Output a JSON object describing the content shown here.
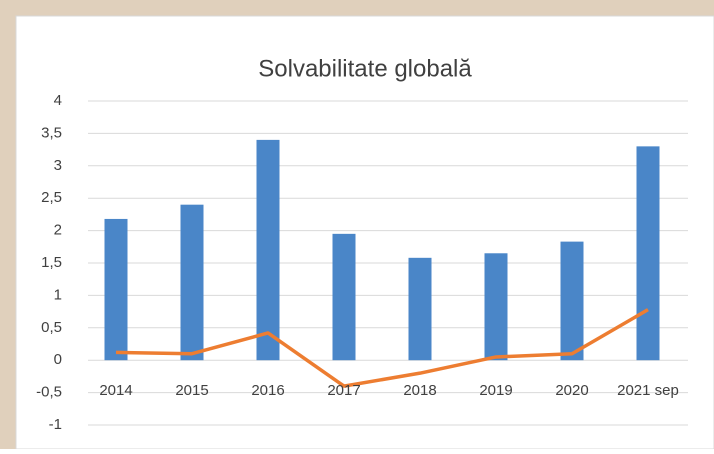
{
  "chart_data": {
    "type": "bar",
    "title": "Solvabilitate globală",
    "categories": [
      "2014",
      "2015",
      "2016",
      "2017",
      "2018",
      "2019",
      "2020",
      "2021 sep"
    ],
    "series": [
      {
        "type": "bar",
        "color": "#4a86c8",
        "values": [
          2.18,
          2.4,
          3.4,
          1.95,
          1.58,
          1.65,
          1.83,
          3.3
        ]
      },
      {
        "type": "line",
        "color": "#ed7d31",
        "values": [
          0.12,
          0.1,
          0.42,
          -0.4,
          -0.2,
          0.05,
          0.1,
          0.78
        ]
      }
    ],
    "ylim": [
      -1,
      4
    ],
    "yticks": [
      -1,
      {
        "value": -0.5,
        "label": "-0,5"
      },
      0,
      {
        "value": 0.5,
        "label": "0,5"
      },
      1,
      {
        "value": 1.5,
        "label": "1,5"
      },
      2,
      {
        "value": 2.5,
        "label": "2,5"
      },
      3,
      {
        "value": 3.5,
        "label": "3,5"
      },
      4
    ],
    "grid": true
  }
}
